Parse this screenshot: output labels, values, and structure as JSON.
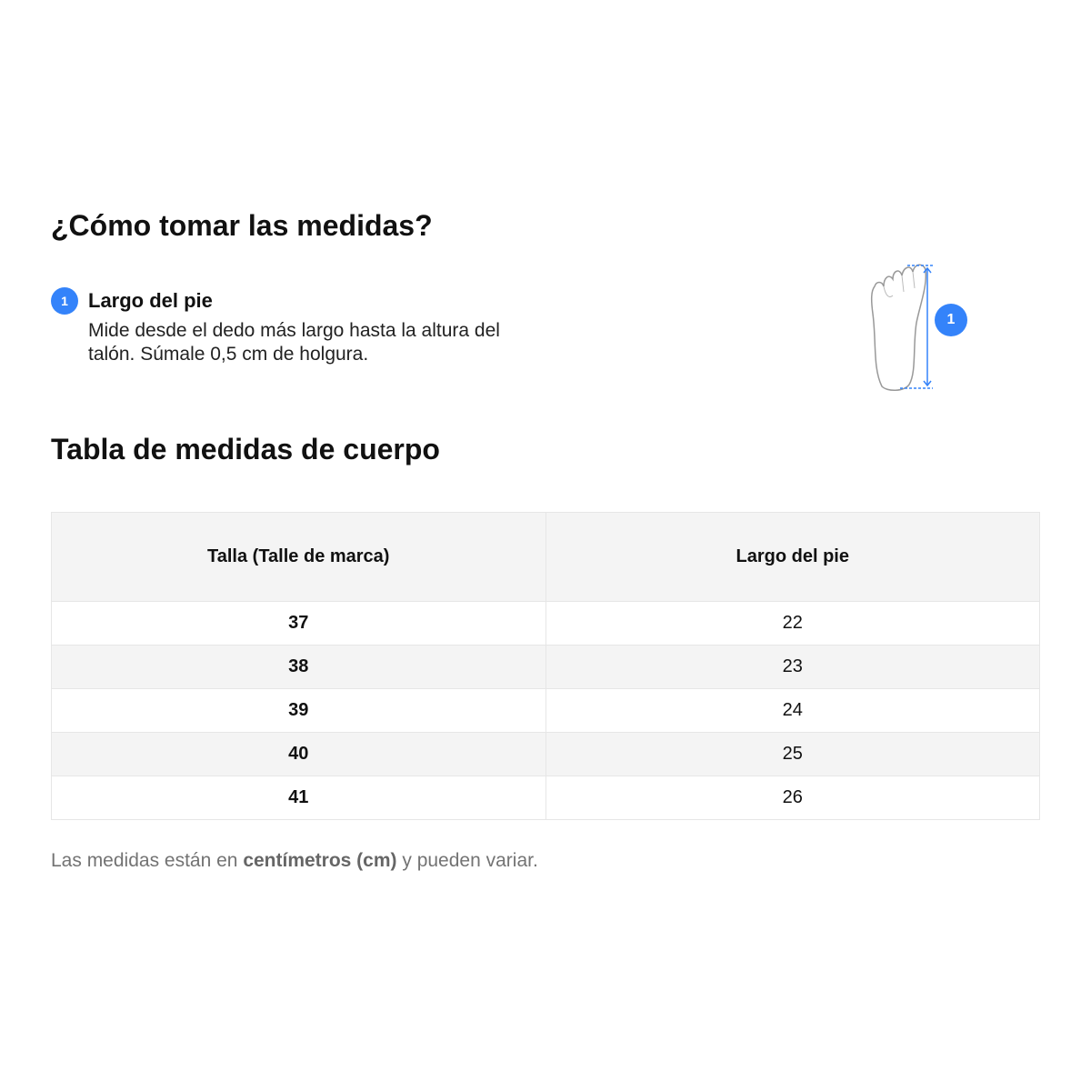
{
  "howto": {
    "title": "¿Cómo tomar las medidas?",
    "steps": [
      {
        "number": "1",
        "title": "Largo del pie",
        "description": "Mide desde el dedo más largo hasta la altura del talón. Súmale 0,5 cm de holgura."
      }
    ],
    "illustration": {
      "icon": "foot-outline-icon",
      "marker": "1",
      "accent": "#3483fa"
    }
  },
  "table": {
    "title": "Tabla de medidas de cuerpo",
    "headers": [
      "Talla (Talle de marca)",
      "Largo del pie"
    ],
    "rows": [
      [
        "37",
        "22"
      ],
      [
        "38",
        "23"
      ],
      [
        "39",
        "24"
      ],
      [
        "40",
        "25"
      ],
      [
        "41",
        "26"
      ]
    ]
  },
  "note": {
    "prefix": "Las medidas están en ",
    "bold": "centímetros (cm)",
    "suffix": " y pueden variar."
  }
}
